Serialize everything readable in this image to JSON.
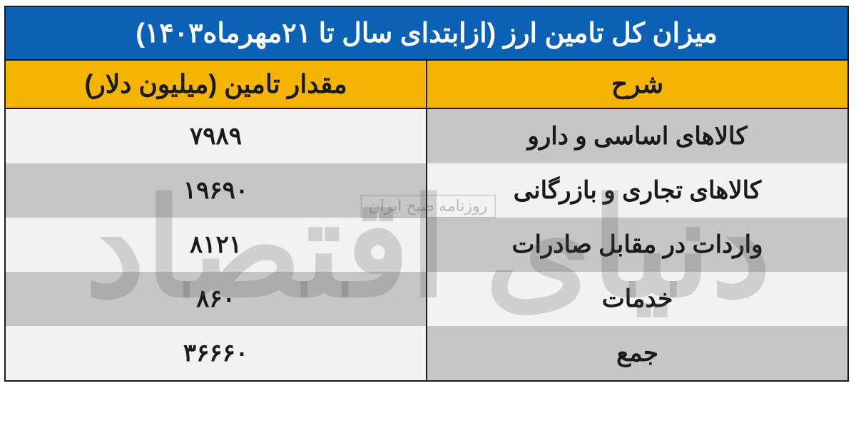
{
  "table": {
    "title": "میزان کل تامین ارز (ازابتدای سال تا ۲۱مهرماه۱۴۰۳)",
    "columns": {
      "description": "شرح",
      "value": "مقدار تامین (میلیون دلار)"
    },
    "rows": [
      {
        "description": "کالاهای اساسی و دارو",
        "value": "۷۹۸۹"
      },
      {
        "description": "کالاهای تجاری و بازرگانی",
        "value": "۱۹۶۹۰"
      },
      {
        "description": "واردات در مقابل صادرات",
        "value": "۸۱۲۱"
      },
      {
        "description": "خدمات",
        "value": "۸۶۰"
      },
      {
        "description": "جمع",
        "value": "۳۶۶۶۰"
      }
    ],
    "colors": {
      "title_bg": "#0b61b4",
      "title_text": "#ffffff",
      "header_bg": "#f5b400",
      "header_text": "#1a1a1a",
      "stripe_a": "#c6c6c6",
      "stripe_b": "#f2f2f2",
      "border": "#1a1a1a",
      "text": "#1a1a1a"
    },
    "font_sizes_pt": {
      "title": 38,
      "header": 36,
      "cell": 34
    }
  },
  "watermark": {
    "main": "دنیای اقتصاد",
    "sub": "روزنامه صبح ایران",
    "color": "rgba(80,80,80,0.22)"
  }
}
